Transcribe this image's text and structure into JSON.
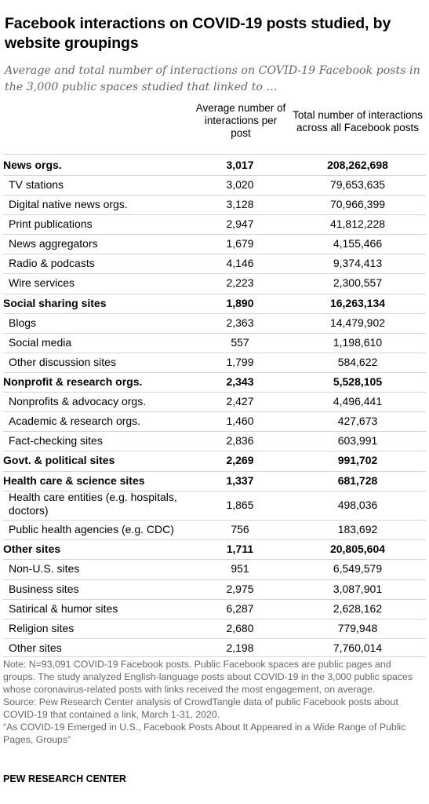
{
  "header": {
    "title": "Facebook interactions on COVID-19 posts studied, by website groupings",
    "subtitle": "Average and total number of interactions on COVID-19 Facebook posts in the 3,000 public spaces studied that linked to …"
  },
  "columns": {
    "average": "Average number of interactions per post",
    "total": "Total number of interactions across all Facebook posts"
  },
  "chart_data": {
    "type": "table",
    "title": "Facebook interactions on COVID-19 posts studied, by website groupings",
    "subtitle": "Average and total number of interactions on COVID-19 Facebook posts in the 3,000 public spaces studied that linked to …",
    "columns": [
      "Average number of interactions per post",
      "Total number of interactions across all Facebook posts"
    ],
    "rows": [
      {
        "label": "News orgs.",
        "level": "group",
        "average": "3,017",
        "total": "208,262,698"
      },
      {
        "label": "TV stations",
        "level": "sub",
        "average": "3,020",
        "total": "79,653,635"
      },
      {
        "label": "Digital native news orgs.",
        "level": "sub",
        "average": "3,128",
        "total": "70,966,399"
      },
      {
        "label": "Print publications",
        "level": "sub",
        "average": "2,947",
        "total": "41,812,228"
      },
      {
        "label": "News aggregators",
        "level": "sub",
        "average": "1,679",
        "total": "4,155,466"
      },
      {
        "label": "Radio & podcasts",
        "level": "sub",
        "average": "4,146",
        "total": "9,374,413"
      },
      {
        "label": "Wire services",
        "level": "sub",
        "average": "2,223",
        "total": "2,300,557"
      },
      {
        "label": "Social sharing sites",
        "level": "group",
        "average": "1,890",
        "total": "16,263,134"
      },
      {
        "label": "Blogs",
        "level": "sub",
        "average": "2,363",
        "total": "14,479,902"
      },
      {
        "label": "Social media",
        "level": "sub",
        "average": "557",
        "total": "1,198,610"
      },
      {
        "label": "Other discussion sites",
        "level": "sub",
        "average": "1,799",
        "total": "584,622"
      },
      {
        "label": "Nonprofit & research orgs.",
        "level": "group",
        "average": "2,343",
        "total": "5,528,105"
      },
      {
        "label": "Nonprofits & advocacy orgs.",
        "level": "sub",
        "average": "2,427",
        "total": "4,496,441"
      },
      {
        "label": "Academic & research orgs.",
        "level": "sub",
        "average": "1,460",
        "total": "427,673"
      },
      {
        "label": "Fact-checking sites",
        "level": "sub",
        "average": "2,836",
        "total": "603,991"
      },
      {
        "label": "Govt. & political sites",
        "level": "group",
        "average": "2,269",
        "total": "991,702"
      },
      {
        "label": "Health care & science sites",
        "level": "group",
        "average": "1,337",
        "total": "681,728"
      },
      {
        "label": "Health care entities (e.g. hospitals, doctors)",
        "level": "sub",
        "average": "1,865",
        "total": "498,036"
      },
      {
        "label": "Public health agencies (e.g. CDC)",
        "level": "sub",
        "average": "756",
        "total": "183,692"
      },
      {
        "label": "Other sites",
        "level": "group",
        "average": "1,711",
        "total": "20,805,604"
      },
      {
        "label": "Non-U.S. sites",
        "level": "sub",
        "average": "951",
        "total": "6,549,579"
      },
      {
        "label": "Business sites",
        "level": "sub",
        "average": "2,975",
        "total": "3,087,901"
      },
      {
        "label": "Satirical & humor sites",
        "level": "sub",
        "average": "6,287",
        "total": "2,628,162"
      },
      {
        "label": "Religion sites",
        "level": "sub",
        "average": "2,680",
        "total": "779,948"
      },
      {
        "label": "Other sites",
        "level": "sub",
        "average": "2,198",
        "total": "7,760,014"
      }
    ]
  },
  "footer": {
    "note": "Note: N=93,091 COVID-19 Facebook posts. Public Facebook spaces are public pages and groups. The study analyzed English-language posts about COVID-19 in the 3,000 public spaces whose coronavirus-related posts with links received the most engagement, on average.",
    "source": "Source: Pew Research Center analysis of CrowdTangle data of public Facebook posts about COVID-19 that contained a link, March 1-31, 2020.",
    "report": "“As COVID-19 Emerged in U.S., Facebook Posts About It Appeared in a Wide Range of Public Pages, Groups”",
    "brand": "PEW RESEARCH CENTER"
  }
}
